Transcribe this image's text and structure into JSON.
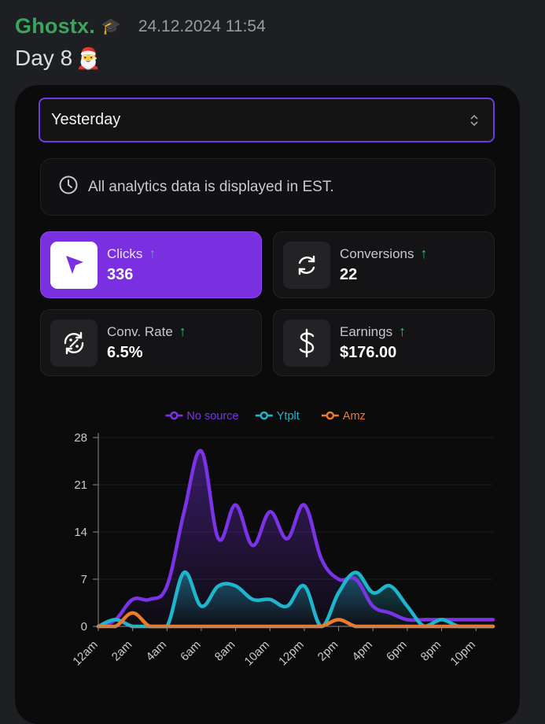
{
  "message": {
    "username": "Ghostx.",
    "badge_icon": "graduation-cap-icon",
    "timestamp": "24.12.2024 11:54",
    "text": "Day 8",
    "emoji_icon": "santa-emoji-icon"
  },
  "dropdown": {
    "value": "Yesterday"
  },
  "notice": {
    "text": "All analytics data is displayed in EST."
  },
  "stats": {
    "clicks": {
      "label": "Clicks",
      "value": "336"
    },
    "conversions": {
      "label": "Conversions",
      "value": "22"
    },
    "conv_rate": {
      "label": "Conv. Rate",
      "value": "6.5%"
    },
    "earnings": {
      "label": "Earnings",
      "value": "$176.00"
    }
  },
  "colors": {
    "accent": "#7a2fe0",
    "up": "#2fc56b",
    "username": "#3ba55d"
  },
  "chart_data": {
    "type": "area",
    "x": [
      "12am",
      "1am",
      "2am",
      "3am",
      "4am",
      "5am",
      "6am",
      "7am",
      "8am",
      "9am",
      "10am",
      "11am",
      "12pm",
      "1pm",
      "2pm",
      "3pm",
      "4pm",
      "5pm",
      "6pm",
      "7pm",
      "8pm",
      "9pm",
      "10pm",
      "11pm"
    ],
    "tick_labels": [
      "12am",
      "2am",
      "4am",
      "6am",
      "8am",
      "10am",
      "12pm",
      "2pm",
      "4pm",
      "6pm",
      "8pm",
      "10pm"
    ],
    "series": [
      {
        "name": "No source",
        "color": "#7a33e6",
        "values": [
          0,
          1,
          4,
          4,
          6,
          17,
          26,
          13,
          18,
          12,
          17,
          13,
          18,
          10,
          7,
          7,
          3,
          2,
          1,
          1,
          1,
          1,
          1,
          1
        ]
      },
      {
        "name": "Ytplt",
        "color": "#1eb6cc",
        "values": [
          0,
          1,
          0,
          0,
          0,
          8,
          3,
          6,
          6,
          4,
          4,
          3,
          6,
          0,
          5,
          8,
          5,
          6,
          3,
          0,
          1,
          0,
          0,
          0
        ]
      },
      {
        "name": "Amz",
        "color": "#f07a2b",
        "values": [
          0,
          0,
          2,
          0,
          0,
          0,
          0,
          0,
          0,
          0,
          0,
          0,
          0,
          0,
          1,
          0,
          0,
          0,
          0,
          0,
          0,
          0,
          0,
          0
        ]
      }
    ],
    "yticks": [
      0,
      7,
      14,
      21,
      28
    ],
    "ylim": [
      0,
      28
    ],
    "grid": true,
    "legend": "top-center"
  }
}
